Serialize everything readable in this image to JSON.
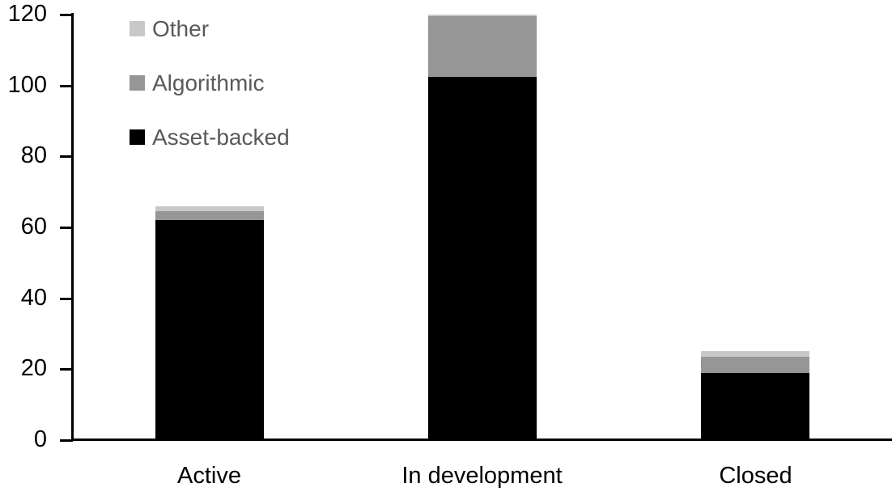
{
  "chart_data": {
    "type": "bar",
    "stacked": true,
    "title": "",
    "xlabel": "",
    "ylabel": "",
    "categories": [
      "Active",
      "In development",
      "Closed"
    ],
    "series": [
      {
        "name": "Asset-backed",
        "color": "#000000",
        "values": [
          62,
          102.5,
          19
        ]
      },
      {
        "name": "Algorithmic",
        "color": "#969696",
        "values": [
          2.5,
          17,
          4.5
        ]
      },
      {
        "name": "Other",
        "color": "#c8c8c8",
        "values": [
          1.5,
          0.5,
          1.5
        ]
      }
    ],
    "totals": [
      66,
      120,
      25
    ],
    "ylim": [
      0,
      120
    ],
    "yticks": [
      0,
      20,
      40,
      60,
      80,
      100,
      120
    ],
    "grid": false,
    "legend_position": "top-left",
    "legend_order_top_to_bottom": [
      "Other",
      "Algorithmic",
      "Asset-backed"
    ],
    "axis_color": "#000000",
    "tick_label_color": "#000000",
    "category_label_color": "#000000",
    "legend_text_color": "#595959"
  }
}
